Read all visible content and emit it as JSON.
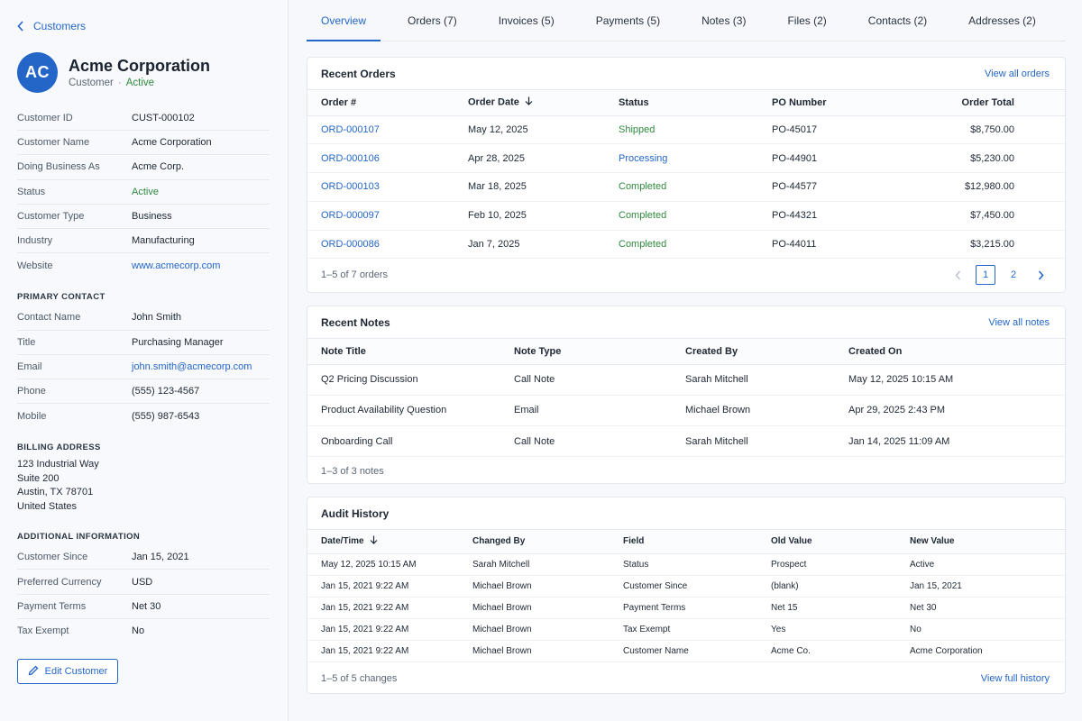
{
  "sidebar": {
    "back_label": "Customers",
    "avatar_initials": "AC",
    "company_name": "Acme Corporation",
    "company_type": "Customer",
    "company_status": "Active",
    "details": [
      {
        "k": "Customer ID",
        "v": "CUST-000102"
      },
      {
        "k": "Customer Name",
        "v": "Acme Corporation"
      },
      {
        "k": "Doing Business As",
        "v": "Acme Corp."
      },
      {
        "k": "Status",
        "v": "Active"
      },
      {
        "k": "Customer Type",
        "v": "Business"
      },
      {
        "k": "Industry",
        "v": "Manufacturing"
      },
      {
        "k": "Website",
        "v": "www.acmecorp.com"
      }
    ],
    "primary_contact_title": "PRIMARY CONTACT",
    "contact": [
      {
        "k": "Contact Name",
        "v": "John Smith"
      },
      {
        "k": "Title",
        "v": "Purchasing Manager"
      },
      {
        "k": "Email",
        "v": "john.smith@acmecorp.com"
      },
      {
        "k": "Phone",
        "v": "(555) 123-4567"
      },
      {
        "k": "Mobile",
        "v": "(555) 987-6543"
      }
    ],
    "billing_title": "BILLING ADDRESS",
    "billing_lines": [
      "123 Industrial Way",
      "Suite 200",
      "Austin, TX 78701",
      "United States"
    ],
    "additional_title": "ADDITIONAL INFORMATION",
    "additional": [
      {
        "k": "Customer Since",
        "v": "Jan 15, 2021"
      },
      {
        "k": "Preferred Currency",
        "v": "USD"
      },
      {
        "k": "Payment Terms",
        "v": "Net 30"
      },
      {
        "k": "Tax Exempt",
        "v": "No"
      }
    ],
    "edit_label": "Edit Customer"
  },
  "tabs": [
    "Overview",
    "Orders (7)",
    "Invoices (5)",
    "Payments (5)",
    "Notes (3)",
    "Files (2)",
    "Contacts (2)",
    "Addresses (2)"
  ],
  "orders": {
    "title": "Recent Orders",
    "link": "View all orders",
    "columns": [
      "Order #",
      "Order Date",
      "Status",
      "PO Number",
      "Order Total"
    ],
    "rows": [
      [
        "ORD-000107",
        "May 12, 2025",
        "Shipped",
        "PO-45017",
        "$8,750.00"
      ],
      [
        "ORD-000106",
        "Apr 28, 2025",
        "Processing",
        "PO-44901",
        "$5,230.00"
      ],
      [
        "ORD-000103",
        "Mar 18, 2025",
        "Completed",
        "PO-44577",
        "$12,980.00"
      ],
      [
        "ORD-000097",
        "Feb 10, 2025",
        "Completed",
        "PO-44321",
        "$7,450.00"
      ],
      [
        "ORD-000086",
        "Jan 7, 2025",
        "Completed",
        "PO-44011",
        "$3,215.00"
      ]
    ],
    "footer": "1–5 of 7 orders",
    "pages": [
      "1",
      "2"
    ]
  },
  "notes": {
    "title": "Recent Notes",
    "link": "View all notes",
    "columns": [
      "Note Title",
      "Note Type",
      "Created By",
      "Created On"
    ],
    "rows": [
      [
        "Q2 Pricing Discussion",
        "Call Note",
        "Sarah Mitchell",
        "May 12, 2025 10:15 AM"
      ],
      [
        "Product Availability Question",
        "Email",
        "Michael Brown",
        "Apr 29, 2025 2:43 PM"
      ],
      [
        "Onboarding Call",
        "Call Note",
        "Sarah Mitchell",
        "Jan 14, 2025 11:09 AM"
      ]
    ],
    "footer": "1–3 of 3 notes"
  },
  "audit": {
    "title": "Audit History",
    "columns": [
      "Date/Time",
      "Changed By",
      "Field",
      "Old Value",
      "New Value"
    ],
    "rows": [
      [
        "May 12, 2025 10:15 AM",
        "Sarah Mitchell",
        "Status",
        "Prospect",
        "Active"
      ],
      [
        "Jan 15, 2021 9:22 AM",
        "Michael Brown",
        "Customer Since",
        "(blank)",
        "Jan 15, 2021"
      ],
      [
        "Jan 15, 2021 9:22 AM",
        "Michael Brown",
        "Payment Terms",
        "Net 15",
        "Net 30"
      ],
      [
        "Jan 15, 2021 9:22 AM",
        "Michael Brown",
        "Tax Exempt",
        "Yes",
        "No"
      ],
      [
        "Jan 15, 2021 9:22 AM",
        "Michael Brown",
        "Customer Name",
        "Acme Co.",
        "Acme Corporation"
      ]
    ],
    "footer": "1–5 of 5 changes",
    "link": "View full history"
  },
  "colors": {
    "accent": "#2466c8",
    "success": "#2f8a3e"
  },
  "icons": [
    "chevron-left-icon",
    "sort-down-icon",
    "pencil-icon",
    "chevron-left-icon",
    "chevron-right-icon"
  ]
}
